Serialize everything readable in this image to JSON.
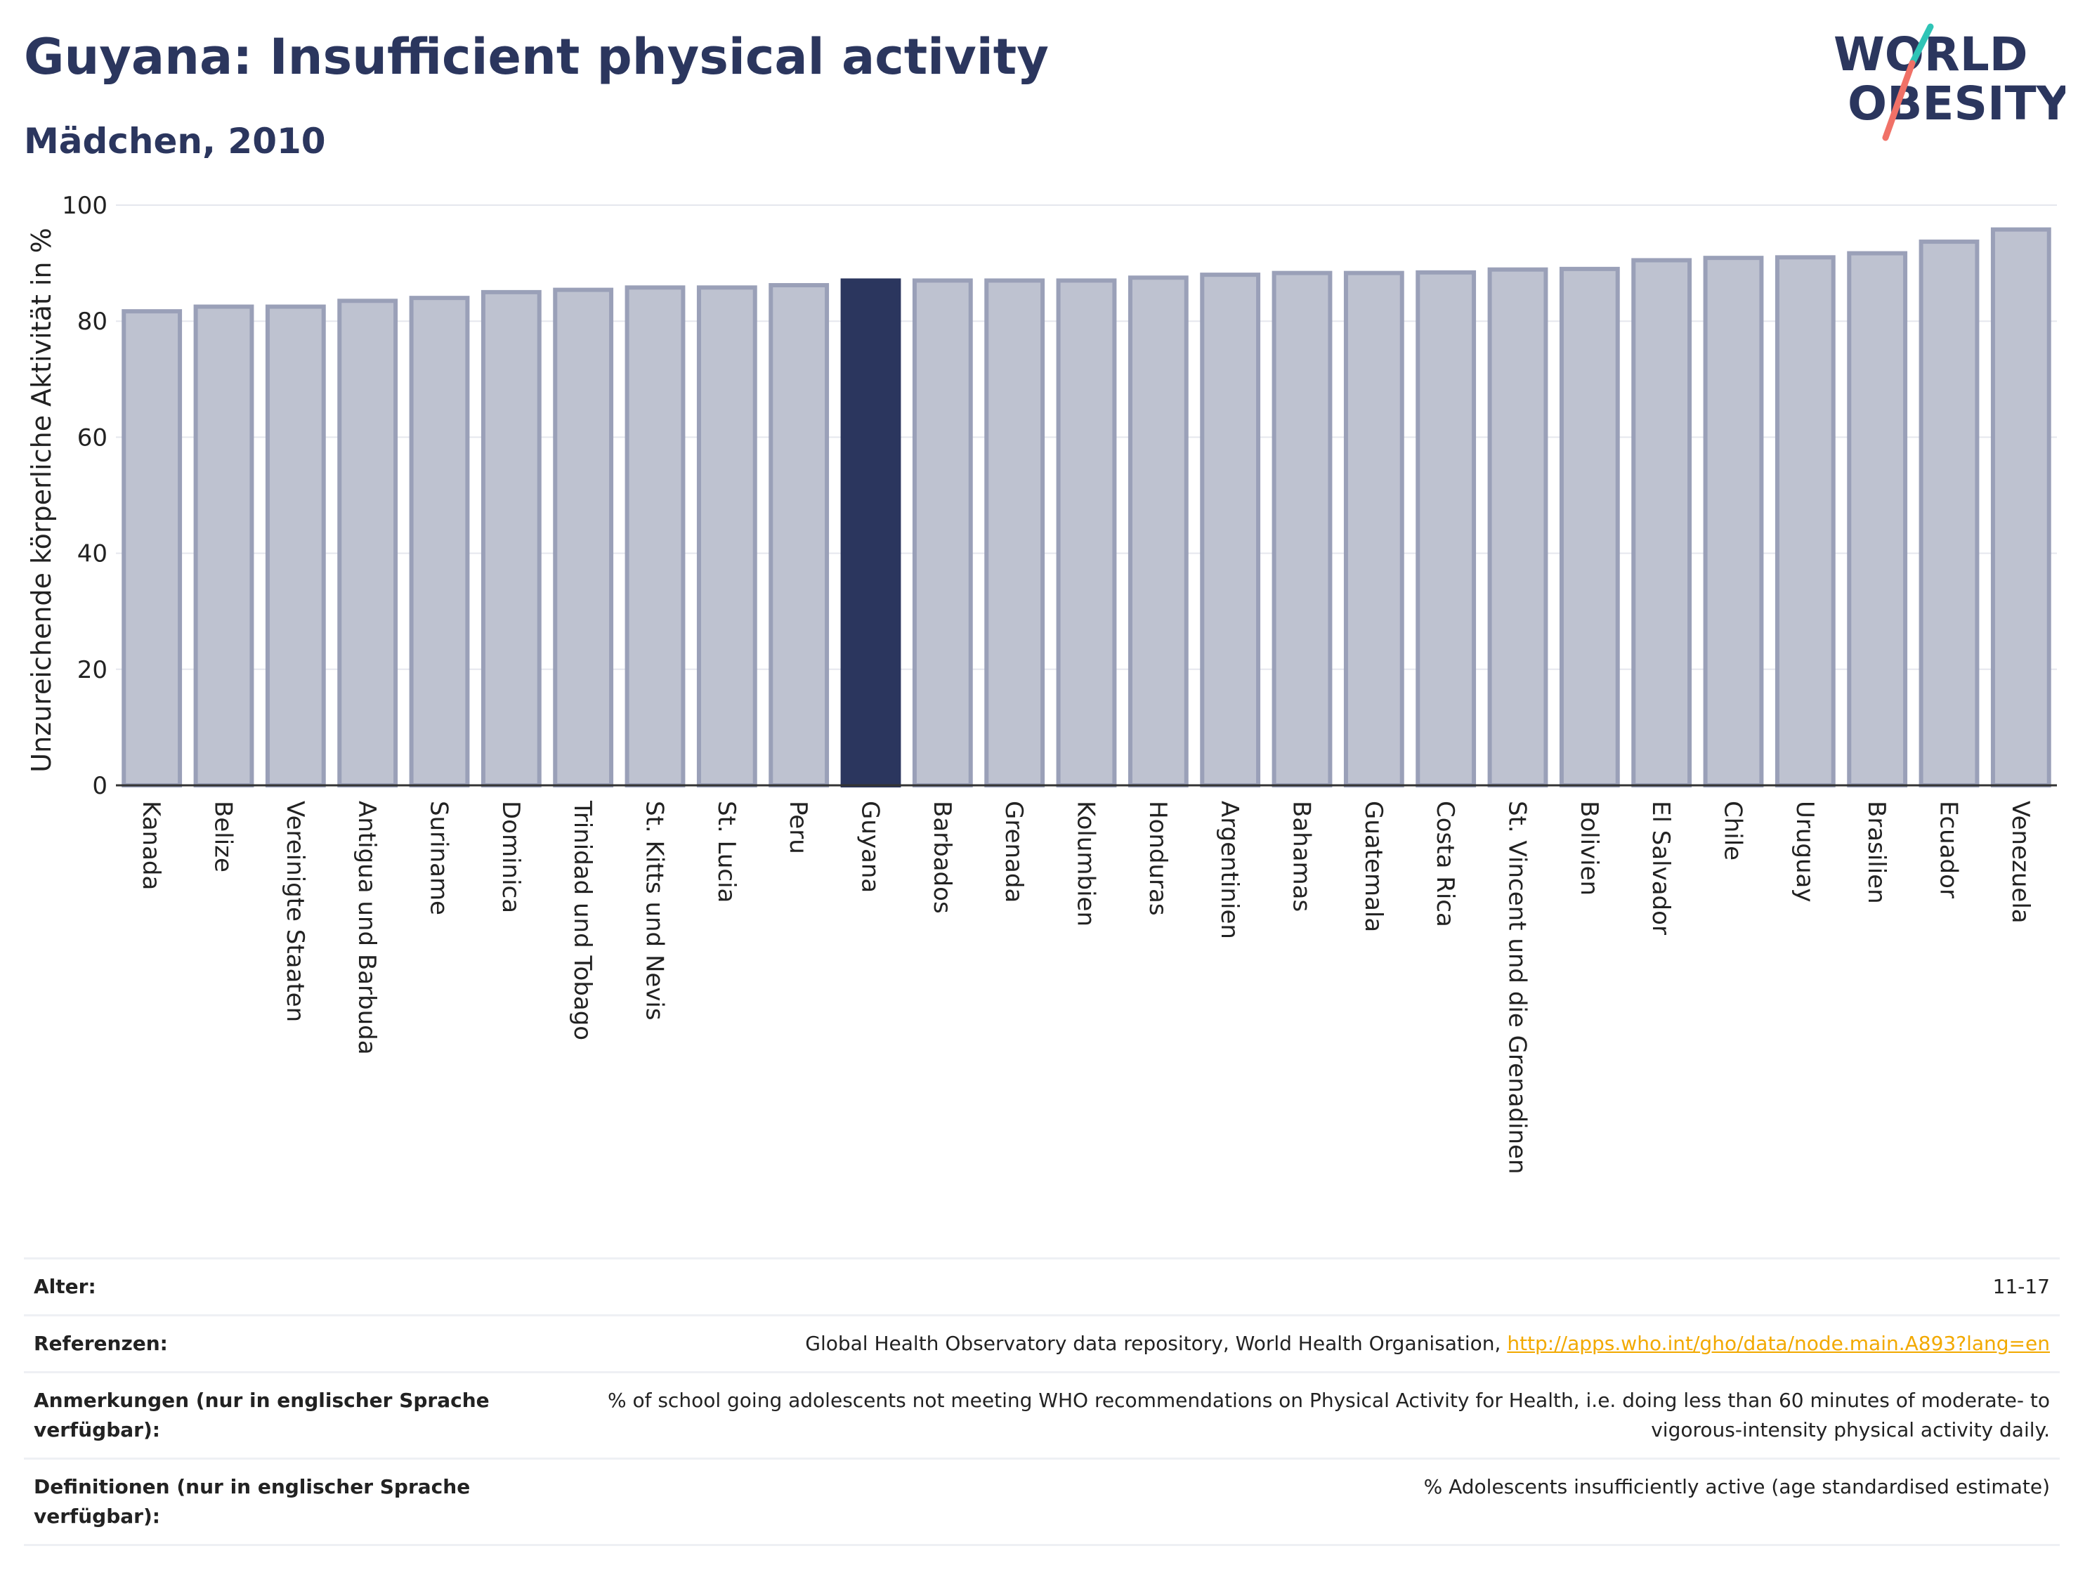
{
  "header": {
    "title": "Guyana: Insufficient physical activity",
    "subtitle": "Mädchen, 2010"
  },
  "logo": {
    "line1": "WORLD",
    "line2": "OBESITY",
    "accent_colors": [
      "#2ec4b6",
      "#f07167"
    ]
  },
  "colors": {
    "highlight": "#2b365e",
    "bar_fill": "#bec2d0",
    "bar_stroke": "#9aa0b8",
    "grid": "#e5e7ee",
    "text": "#2b365e",
    "link": "#f2a900"
  },
  "chart_data": {
    "type": "bar",
    "title": "Guyana: Insufficient physical activity",
    "subtitle": "Mädchen, 2010",
    "xlabel": "",
    "ylabel": "Unzureichende körperliche Aktivität in %",
    "ylim": [
      0,
      100
    ],
    "yticks": [
      0,
      20,
      40,
      60,
      80,
      100
    ],
    "grid": true,
    "highlight": "Guyana",
    "categories": [
      "Kanada",
      "Belize",
      "Vereinigte Staaten",
      "Antigua und Barbuda",
      "Suriname",
      "Dominica",
      "Trinidad und Tobago",
      "St. Kitts und Nevis",
      "St. Lucia",
      "Peru",
      "Guyana",
      "Barbados",
      "Grenada",
      "Kolumbien",
      "Honduras",
      "Argentinien",
      "Bahamas",
      "Guatemala",
      "Costa Rica",
      "St. Vincent und die Grenadinen",
      "Bolivien",
      "El Salvador",
      "Chile",
      "Uruguay",
      "Brasilien",
      "Ecuador",
      "Venezuela"
    ],
    "values": [
      81.7,
      82.5,
      82.5,
      83.5,
      84.0,
      85.0,
      85.4,
      85.8,
      85.8,
      86.2,
      87.0,
      87.0,
      87.0,
      87.0,
      87.5,
      88.0,
      88.3,
      88.3,
      88.4,
      88.9,
      89.0,
      90.5,
      90.9,
      91.0,
      91.7,
      93.7,
      95.8
    ]
  },
  "info_table": {
    "rows": [
      {
        "label": "Alter:",
        "value": "11-17"
      },
      {
        "label": "Referenzen:",
        "value": "Global Health Observatory data repository, World Health Organisation, ",
        "link": "http://apps.who.int/gho/data/node.main.A893?lang=en"
      },
      {
        "label": "Anmerkungen (nur in englischer Sprache verfügbar):",
        "value": "% of school going adolescents not meeting WHO recommendations on Physical Activity for Health, i.e. doing less than 60 minutes of moderate- to vigorous-intensity physical activity daily."
      },
      {
        "label": "Definitionen (nur in englischer Sprache verfügbar):",
        "value": "% Adolescents insufficiently active (age standardised estimate)"
      }
    ]
  }
}
